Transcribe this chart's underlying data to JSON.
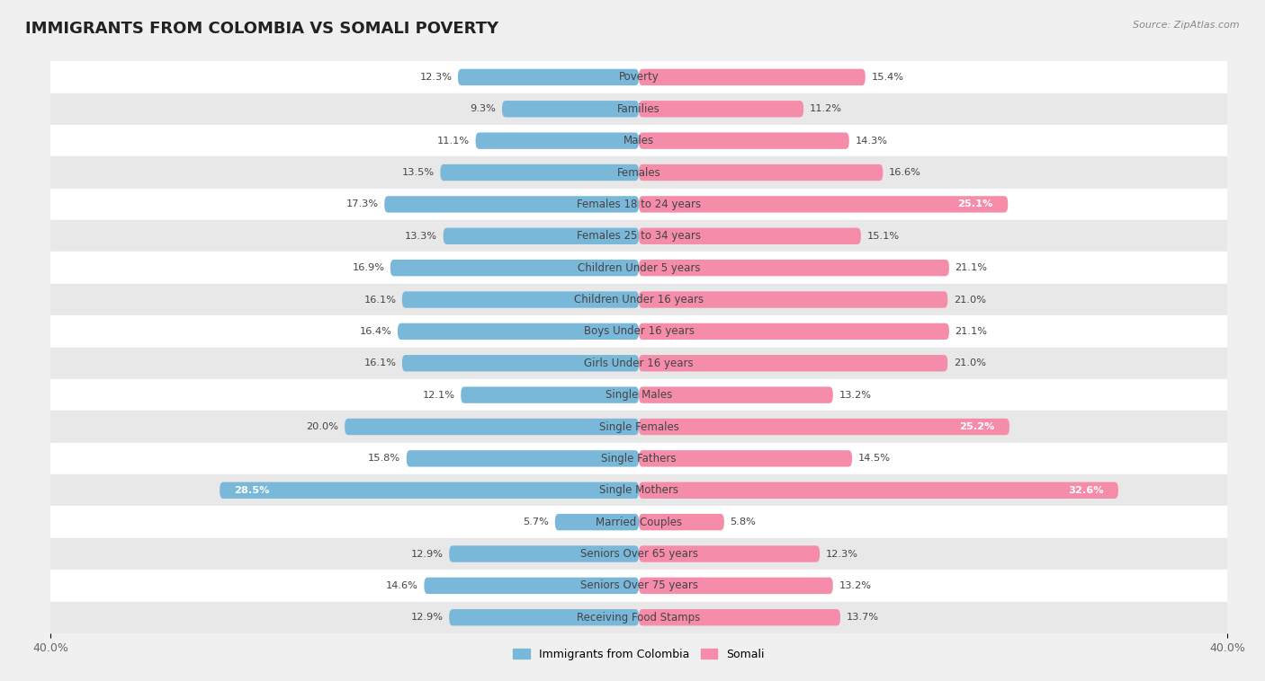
{
  "title": "IMMIGRANTS FROM COLOMBIA VS SOMALI POVERTY",
  "source": "Source: ZipAtlas.com",
  "categories": [
    "Poverty",
    "Families",
    "Males",
    "Females",
    "Females 18 to 24 years",
    "Females 25 to 34 years",
    "Children Under 5 years",
    "Children Under 16 years",
    "Boys Under 16 years",
    "Girls Under 16 years",
    "Single Males",
    "Single Females",
    "Single Fathers",
    "Single Mothers",
    "Married Couples",
    "Seniors Over 65 years",
    "Seniors Over 75 years",
    "Receiving Food Stamps"
  ],
  "colombia_values": [
    12.3,
    9.3,
    11.1,
    13.5,
    17.3,
    13.3,
    16.9,
    16.1,
    16.4,
    16.1,
    12.1,
    20.0,
    15.8,
    28.5,
    5.7,
    12.9,
    14.6,
    12.9
  ],
  "somali_values": [
    15.4,
    11.2,
    14.3,
    16.6,
    25.1,
    15.1,
    21.1,
    21.0,
    21.1,
    21.0,
    13.2,
    25.2,
    14.5,
    32.6,
    5.8,
    12.3,
    13.2,
    13.7
  ],
  "colombia_color": "#7ab8d9",
  "somali_color": "#f48caa",
  "background_color": "#f0f0f0",
  "row_white_color": "#ffffff",
  "row_gray_color": "#e8e8e8",
  "xlim": 40.0,
  "bar_height": 0.52,
  "legend_labels": [
    "Immigrants from Colombia",
    "Somali"
  ],
  "x_tick_label": "40.0%",
  "title_fontsize": 13,
  "label_fontsize": 8.5,
  "value_fontsize": 8.2,
  "white_label_threshold": 22.0
}
